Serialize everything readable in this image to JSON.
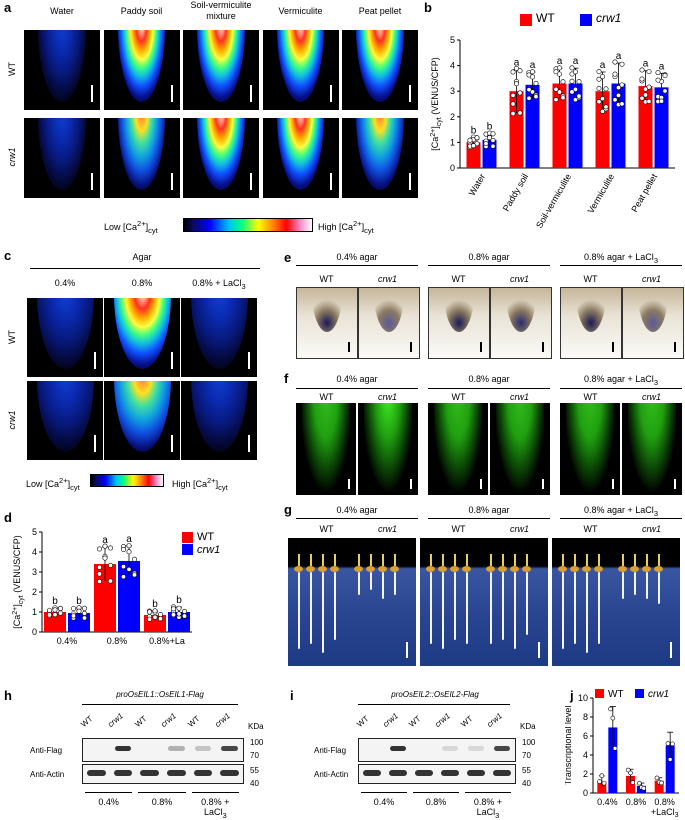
{
  "panel_letters": {
    "a": "a",
    "b": "b",
    "c": "c",
    "d": "d",
    "e": "e",
    "f": "f",
    "g": "g",
    "h": "h",
    "i": "i",
    "j": "j"
  },
  "panel_a": {
    "columns": [
      "Water",
      "Paddy soil",
      "Soil-vermiculite\nmixture",
      "Vermiculite",
      "Peat pellet"
    ],
    "rows": [
      "WT",
      "crw1"
    ],
    "colorbar_low": "Low [Ca2+]cyt",
    "colorbar_high": "High [Ca2+]cyt"
  },
  "panel_c": {
    "header": "Agar",
    "columns": [
      "0.4%",
      "0.8%",
      "0.8% + LaCl3"
    ],
    "rows": [
      "WT",
      "crw1"
    ],
    "colorbar_low": "Low [Ca2+]cyt",
    "colorbar_high": "High [Ca2+]cyt"
  },
  "panel_e": {
    "groups": [
      "0.4% agar",
      "0.8% agar",
      "0.8% agar + LaCl3"
    ],
    "sub": [
      "WT",
      "crw1"
    ]
  },
  "panel_f": {
    "groups": [
      "0.4% agar",
      "0.8% agar",
      "0.8% agar + LaCl3"
    ],
    "sub": [
      "WT",
      "crw1"
    ]
  },
  "panel_g": {
    "groups": [
      "0.4% agar",
      "0.8% agar",
      "0.8% agar + LaCl3"
    ],
    "sub": [
      "WT",
      "crw1"
    ]
  },
  "panel_h": {
    "construct": "proOsEIL1::OsEIL1-Flag",
    "lanes": [
      "WT",
      "crw1",
      "WT",
      "crw1",
      "WT",
      "crw1"
    ],
    "rows": [
      "Anti-Flag",
      "Anti-Actin"
    ],
    "kda_label": "KDa",
    "kda": [
      "100",
      "70",
      "55",
      "40"
    ],
    "conditions": [
      "0.4%",
      "0.8%",
      "0.8% + LaCl3"
    ]
  },
  "panel_i": {
    "construct": "proOsEIL2::OsEIL2-Flag",
    "lanes": [
      "WT",
      "crw1",
      "WT",
      "crw1",
      "WT",
      "crw1"
    ],
    "rows": [
      "Anti-Flag",
      "Anti-Actin"
    ],
    "kda_label": "KDa",
    "kda": [
      "100",
      "70",
      "55",
      "40"
    ],
    "conditions": [
      "0.4%",
      "0.8%",
      "0.8% + LaCl3"
    ]
  },
  "colors": {
    "wt": "#ff0000",
    "crw1": "#0000ff"
  },
  "chart_data": [
    {
      "id": "b",
      "type": "bar",
      "categories": [
        "Water",
        "Paddy soil",
        "Soil-vermiculite",
        "Vermiculite",
        "Peat pellet"
      ],
      "series": [
        {
          "name": "WT",
          "values": [
            1.0,
            3.0,
            3.3,
            3.0,
            3.2
          ],
          "errors": [
            0.2,
            0.85,
            0.6,
            0.75,
            0.6
          ]
        },
        {
          "name": "crw1",
          "values": [
            1.1,
            3.25,
            3.3,
            3.3,
            3.15
          ],
          "errors": [
            0.25,
            0.5,
            0.6,
            0.8,
            0.55
          ]
        }
      ],
      "letters": [
        [
          "b",
          "b"
        ],
        [
          "a",
          "a"
        ],
        [
          "a",
          "a"
        ],
        [
          "a",
          "a"
        ],
        [
          "a",
          "a"
        ]
      ],
      "ylabel": "[Ca2+]cyt (VENUS/CFP)",
      "ylim": [
        0,
        5
      ],
      "yticks": [
        "0",
        "1",
        "2",
        "3",
        "4",
        "5"
      ],
      "legend": "top-right"
    },
    {
      "id": "d",
      "type": "bar",
      "categories": [
        "0.4%",
        "0.8%",
        "0.8%+La"
      ],
      "series": [
        {
          "name": "WT",
          "values": [
            1.0,
            3.4,
            0.85
          ],
          "errors": [
            0.2,
            0.85,
            0.2
          ]
        },
        {
          "name": "crw1",
          "values": [
            0.95,
            3.55,
            1.0
          ],
          "errors": [
            0.25,
            0.75,
            0.25
          ]
        }
      ],
      "letters": [
        [
          "b",
          "b"
        ],
        [
          "a",
          "a"
        ],
        [
          "b",
          "b"
        ]
      ],
      "ylabel": "[Ca2+]cyt (VENUS/CFP)",
      "ylim": [
        0,
        5
      ],
      "yticks": [
        "0",
        "1",
        "2",
        "3",
        "4",
        "5"
      ],
      "legend": "top-right"
    },
    {
      "id": "j",
      "type": "bar",
      "categories": [
        "0.4%",
        "0.8%",
        "0.8%\n+LaCl3"
      ],
      "series": [
        {
          "name": "WT",
          "values": [
            1.2,
            1.8,
            1.3
          ],
          "errors": [
            0.6,
            0.7,
            0.3
          ]
        },
        {
          "name": "crw1",
          "values": [
            6.9,
            0.75,
            5.0
          ],
          "errors": [
            2.2,
            0.3,
            1.4
          ]
        }
      ],
      "ylabel": "Transcriptional level",
      "ylim": [
        0,
        10
      ],
      "yticks": [
        "0",
        "2",
        "4",
        "6",
        "8",
        "10"
      ],
      "legend": "top"
    }
  ]
}
